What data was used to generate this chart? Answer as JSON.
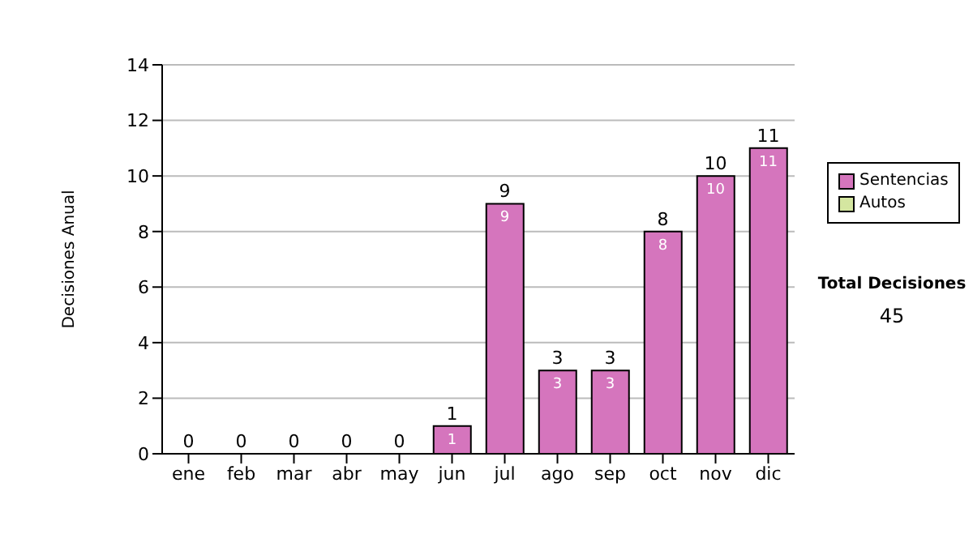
{
  "chart_data": {
    "type": "bar",
    "ylabel": "Decisiones Anual",
    "categories": [
      "ene",
      "feb",
      "mar",
      "abr",
      "may",
      "jun",
      "jul",
      "ago",
      "sep",
      "oct",
      "nov",
      "dic"
    ],
    "series": [
      {
        "name": "Sentencias",
        "color": "#d575bd",
        "values": [
          0,
          0,
          0,
          0,
          0,
          1,
          9,
          3,
          3,
          8,
          10,
          11
        ],
        "value_labels": [
          null,
          null,
          null,
          null,
          null,
          "1",
          "9",
          "3",
          "3",
          "8",
          "10",
          "11"
        ]
      },
      {
        "name": "Autos",
        "color": "#d4e6a0",
        "values": [
          0,
          0,
          0,
          0,
          0,
          0,
          0,
          0,
          0,
          0,
          0,
          0
        ]
      }
    ],
    "stacked": true,
    "totals": [
      "0",
      "0",
      "0",
      "0",
      "0",
      "1",
      "9",
      "3",
      "3",
      "8",
      "10",
      "11"
    ],
    "ylim": [
      0,
      14
    ],
    "yticks": [
      0,
      2,
      4,
      6,
      8,
      10,
      12,
      14
    ],
    "grid": "y",
    "legend": "right",
    "annotations": [
      "Total Decisiones",
      "45"
    ]
  }
}
